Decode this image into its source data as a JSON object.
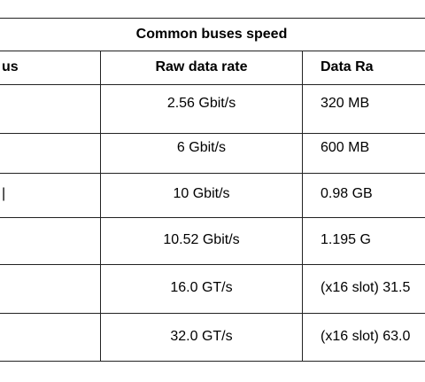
{
  "table": {
    "title": "Common buses speed",
    "header": [
      "us",
      "Raw data rate",
      "Data Ra"
    ],
    "rows": [
      [
        "",
        "2.56 Gbit/s",
        "320 MB"
      ],
      [
        "",
        "6 Gbit/s",
        "600 MB"
      ],
      [
        "|",
        "10 Gbit/s",
        "0.98 GB"
      ],
      [
        "",
        "10.52 Gbit/s",
        "1.195 G"
      ],
      [
        "",
        "16.0 GT/s",
        "(x16 slot) 31.5"
      ],
      [
        "",
        "32.0 GT/s",
        "(x16 slot) 63.0"
      ]
    ]
  }
}
